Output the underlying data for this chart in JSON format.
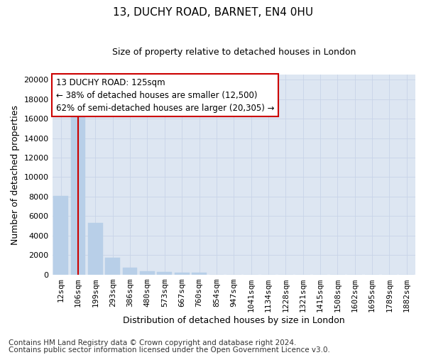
{
  "title1": "13, DUCHY ROAD, BARNET, EN4 0HU",
  "title2": "Size of property relative to detached houses in London",
  "xlabel": "Distribution of detached houses by size in London",
  "ylabel": "Number of detached properties",
  "categories": [
    "12sqm",
    "106sqm",
    "199sqm",
    "293sqm",
    "386sqm",
    "480sqm",
    "573sqm",
    "667sqm",
    "760sqm",
    "854sqm",
    "947sqm",
    "1041sqm",
    "1134sqm",
    "1228sqm",
    "1321sqm",
    "1415sqm",
    "1508sqm",
    "1602sqm",
    "1695sqm",
    "1789sqm",
    "1882sqm"
  ],
  "values": [
    8050,
    16500,
    5300,
    1750,
    750,
    320,
    270,
    240,
    210,
    0,
    0,
    0,
    0,
    0,
    0,
    0,
    0,
    0,
    0,
    0,
    0
  ],
  "bar_color": "#b8cfe8",
  "bar_edge_color": "#b8cfe8",
  "highlight_bar_index": 1,
  "highlight_color": "#cc0000",
  "annotation_text": "13 DUCHY ROAD: 125sqm\n← 38% of detached houses are smaller (12,500)\n62% of semi-detached houses are larger (20,305) →",
  "annotation_box_color": "#ffffff",
  "annotation_box_edge_color": "#cc0000",
  "ylim": [
    0,
    20500
  ],
  "yticks": [
    0,
    2000,
    4000,
    6000,
    8000,
    10000,
    12000,
    14000,
    16000,
    18000,
    20000
  ],
  "grid_color": "#c8d4e8",
  "background_color": "#dde6f2",
  "footer1": "Contains HM Land Registry data © Crown copyright and database right 2024.",
  "footer2": "Contains public sector information licensed under the Open Government Licence v3.0.",
  "title1_fontsize": 11,
  "title2_fontsize": 9,
  "xlabel_fontsize": 9,
  "ylabel_fontsize": 9,
  "tick_fontsize": 8,
  "footer_fontsize": 7.5
}
